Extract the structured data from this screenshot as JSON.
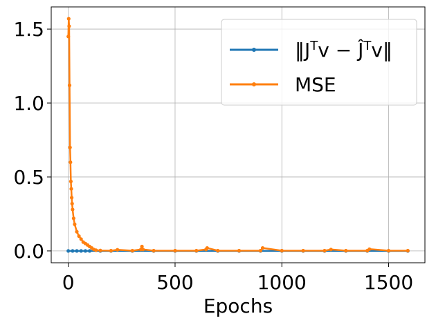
{
  "chart_data": {
    "type": "line",
    "xlabel": "Epochs",
    "ylabel": "",
    "xlim": [
      -80,
      1670
    ],
    "ylim": [
      -0.08,
      1.65
    ],
    "xticks": [
      0,
      500,
      1000,
      1500
    ],
    "xtick_labels": [
      "0",
      "500",
      "1000",
      "1500"
    ],
    "yticks": [
      0.0,
      0.5,
      1.0,
      1.5
    ],
    "ytick_labels": [
      "0.0",
      "0.5",
      "1.0",
      "1.5"
    ],
    "grid": true,
    "legend_position": "top-right",
    "series": [
      {
        "name_parts": [
          "‖J",
          "T",
          "v − ",
          "Ĵ",
          "T",
          "v‖"
        ],
        "color": "#1f77b4",
        "x": [
          0,
          20,
          40,
          60,
          80,
          100,
          150,
          200,
          300,
          400,
          500,
          600,
          700,
          800,
          900,
          1000,
          1100,
          1200,
          1300,
          1400,
          1500,
          1590
        ],
        "y": [
          0.0,
          0.0,
          0.0,
          0.0,
          0.0,
          0.0,
          0.0,
          0.0,
          0.0,
          0.0,
          0.0,
          0.0,
          0.0,
          0.0,
          0.0,
          0.0,
          0.0,
          0.0,
          0.0,
          0.0,
          0.0,
          0.0
        ]
      },
      {
        "name": "MSE",
        "color": "#ff7f0e",
        "x": [
          0,
          2,
          4,
          6,
          8,
          10,
          12,
          14,
          16,
          18,
          20,
          25,
          30,
          40,
          50,
          60,
          70,
          80,
          90,
          100,
          110,
          120,
          130,
          150,
          200,
          230,
          300,
          340,
          345,
          350,
          400,
          500,
          600,
          645,
          650,
          700,
          800,
          900,
          910,
          1000,
          1100,
          1200,
          1230,
          1300,
          1400,
          1410,
          1500,
          1590
        ],
        "y": [
          1.45,
          1.57,
          1.52,
          1.12,
          0.7,
          0.6,
          0.47,
          0.42,
          0.36,
          0.32,
          0.28,
          0.22,
          0.18,
          0.13,
          0.1,
          0.08,
          0.06,
          0.05,
          0.04,
          0.03,
          0.02,
          0.01,
          0.005,
          0.003,
          0.002,
          0.008,
          0.002,
          0.01,
          0.03,
          0.01,
          0.002,
          0.002,
          0.002,
          0.01,
          0.02,
          0.002,
          0.002,
          0.002,
          0.02,
          0.002,
          0.002,
          0.002,
          0.01,
          0.002,
          0.002,
          0.012,
          0.002,
          0.002
        ]
      }
    ]
  }
}
